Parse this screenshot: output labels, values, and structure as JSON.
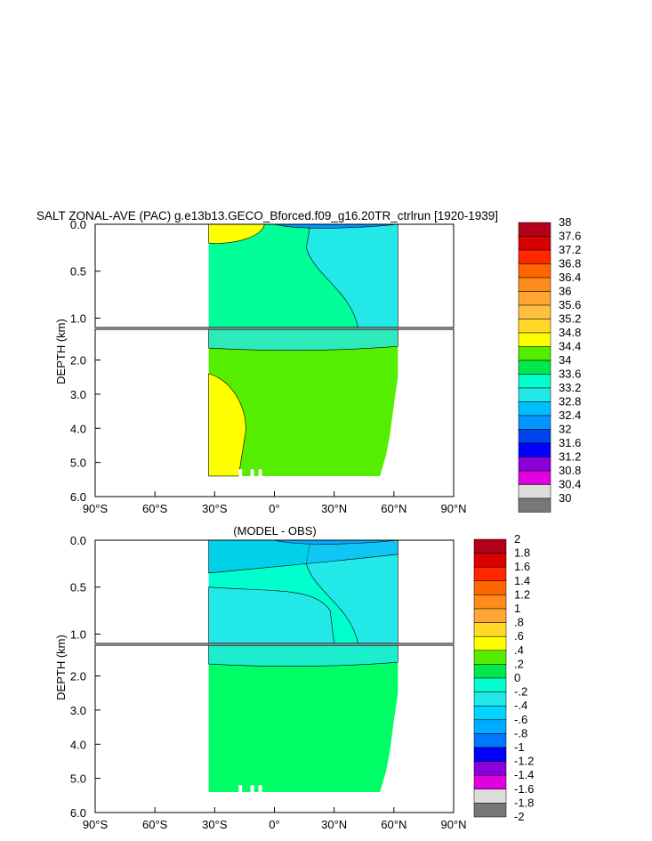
{
  "title": "SALT ZONAL-AVE (PAC) g.e13b13.GECO_Bforced.f09_g16.20TR_ctrlrun [1920-1939]",
  "colors": {
    "land": "#ffffff",
    "mask_bg": "#ffffff",
    "axis": "#000000",
    "contour_line": "#000000"
  },
  "chart_data": [
    {
      "type": "heatmap",
      "title": "SALT ZONAL-AVE (PAC) g.e13b13.GECO_Bforced.f09_g16.20TR_ctrlrun [1920-1939]",
      "xlabel": "",
      "ylabel": "DEPTH (km)",
      "x_ticks": [
        "90°S",
        "60°S",
        "30°S",
        "0°",
        "30°N",
        "60°N",
        "90°N"
      ],
      "y_ticks_upper": [
        "0.0",
        "0.5",
        "1.0"
      ],
      "y_ticks_lower": [
        "2.0",
        "3.0",
        "4.0",
        "5.0",
        "6.0"
      ],
      "xlim": [
        -90,
        90
      ],
      "ylim_upper_km": [
        0,
        1.1
      ],
      "ylim_lower_km": [
        1.1,
        6.0
      ],
      "colorbar": {
        "labels": [
          "38",
          "37.6",
          "37.2",
          "36.8",
          "36.4",
          "36",
          "35.6",
          "35.2",
          "34.8",
          "34.4",
          "34",
          "33.6",
          "33.2",
          "32.8",
          "32.4",
          "32",
          "31.6",
          "31.2",
          "30.8",
          "30.4",
          "30"
        ],
        "colors": [
          "#b3001a",
          "#d90000",
          "#ff2600",
          "#ff6600",
          "#ff8c1a",
          "#ffa633",
          "#ffbf40",
          "#ffd926",
          "#ffff00",
          "#55ee00",
          "#00e84c",
          "#00ffcc",
          "#22e8e8",
          "#00bfff",
          "#0095ff",
          "#0044ee",
          "#0000ff",
          "#8a00d8",
          "#e000e0",
          "#dddddd",
          "#777777"
        ]
      },
      "fill": {
        "upper_background": "#22e8e8",
        "upper_body": "#00ff99",
        "lower_body": "#55ee00",
        "south_patch": "#ffff00",
        "near_surface_patch": "#ffff00",
        "surface_blue": "#0095ff"
      }
    },
    {
      "type": "heatmap",
      "title": "(MODEL - OBS)",
      "xlabel": "",
      "ylabel": "DEPTH (km)",
      "x_ticks": [
        "90°S",
        "60°S",
        "30°S",
        "0°",
        "30°N",
        "60°N",
        "90°N"
      ],
      "y_ticks_upper": [
        "0.0",
        "0.5",
        "1.0"
      ],
      "y_ticks_lower": [
        "2.0",
        "3.0",
        "4.0",
        "5.0",
        "6.0"
      ],
      "xlim": [
        -90,
        90
      ],
      "ylim_upper_km": [
        0,
        1.1
      ],
      "ylim_lower_km": [
        1.1,
        6.0
      ],
      "colorbar": {
        "labels": [
          "2",
          "1.8",
          "1.6",
          "1.4",
          "1.2",
          "1",
          ".8",
          ".6",
          ".4",
          ".2",
          "0",
          "-.2",
          "-.4",
          "-.6",
          "-.8",
          "-1",
          "-1.2",
          "-1.4",
          "-1.6",
          "-1.8",
          "-2"
        ],
        "colors": [
          "#b3001a",
          "#d90000",
          "#ff2600",
          "#ff6600",
          "#ff8c1a",
          "#ffa633",
          "#ffd926",
          "#ffff00",
          "#55ee00",
          "#00e84c",
          "#00ffcc",
          "#22e8e8",
          "#00d4ff",
          "#00aaff",
          "#0077ff",
          "#0000ff",
          "#8a00d8",
          "#e000e0",
          "#dddddd",
          "#777777"
        ]
      },
      "fill": {
        "upper_background": "#22e8e8",
        "upper_body": "#00ffcc",
        "lower_body": "#00ff66",
        "surface_blue": "#00aaff"
      }
    }
  ]
}
